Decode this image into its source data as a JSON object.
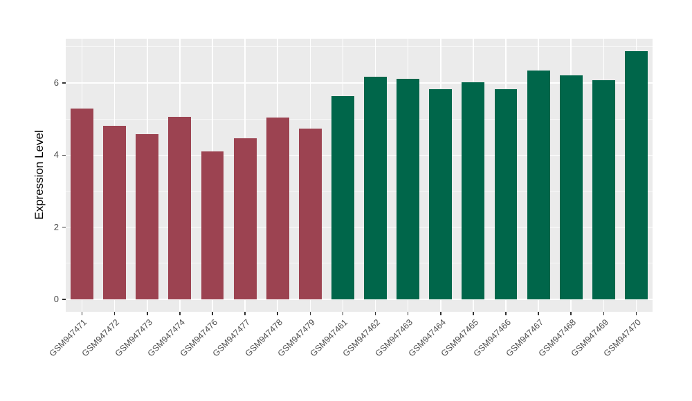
{
  "figure": {
    "background": "#FFFFFF",
    "panel_background": "#EBEBEB",
    "gridline_color": "#FFFFFF",
    "tick_mark_color": "#333333",
    "tick_label_color": "#4D4D4D",
    "axis_title_color": "#000000"
  },
  "chart_data": {
    "type": "bar",
    "title": "",
    "xlabel": "",
    "ylabel": "Expression Level",
    "categories": [
      "GSM947471",
      "GSM947472",
      "GSM947473",
      "GSM947474",
      "GSM947476",
      "GSM947477",
      "GSM947478",
      "GSM947479",
      "GSM947461",
      "GSM947462",
      "GSM947463",
      "GSM947464",
      "GSM947465",
      "GSM947466",
      "GSM947467",
      "GSM947468",
      "GSM947469",
      "GSM947470"
    ],
    "values": [
      5.3,
      4.81,
      4.58,
      5.06,
      4.1,
      4.47,
      5.05,
      4.73,
      5.63,
      6.18,
      6.11,
      5.83,
      6.02,
      5.83,
      6.35,
      6.22,
      6.07,
      6.88
    ],
    "bar_colors": [
      "#9C4351",
      "#9C4351",
      "#9C4351",
      "#9C4351",
      "#9C4351",
      "#9C4351",
      "#9C4351",
      "#9C4351",
      "#00664A",
      "#00664A",
      "#00664A",
      "#00664A",
      "#00664A",
      "#00664A",
      "#00664A",
      "#00664A",
      "#00664A",
      "#00664A"
    ],
    "group_colors": {
      "left_group": "#9C4351",
      "right_group": "#00664A"
    },
    "yticks": [
      0,
      2,
      4,
      6
    ],
    "yticks_minor": [
      1,
      3,
      5,
      7
    ],
    "ylim": [
      -0.35,
      7.23
    ],
    "grid": "major-and-minor",
    "legend": "none",
    "bar_width_fraction": 0.7,
    "x_label_rotation": 45
  }
}
